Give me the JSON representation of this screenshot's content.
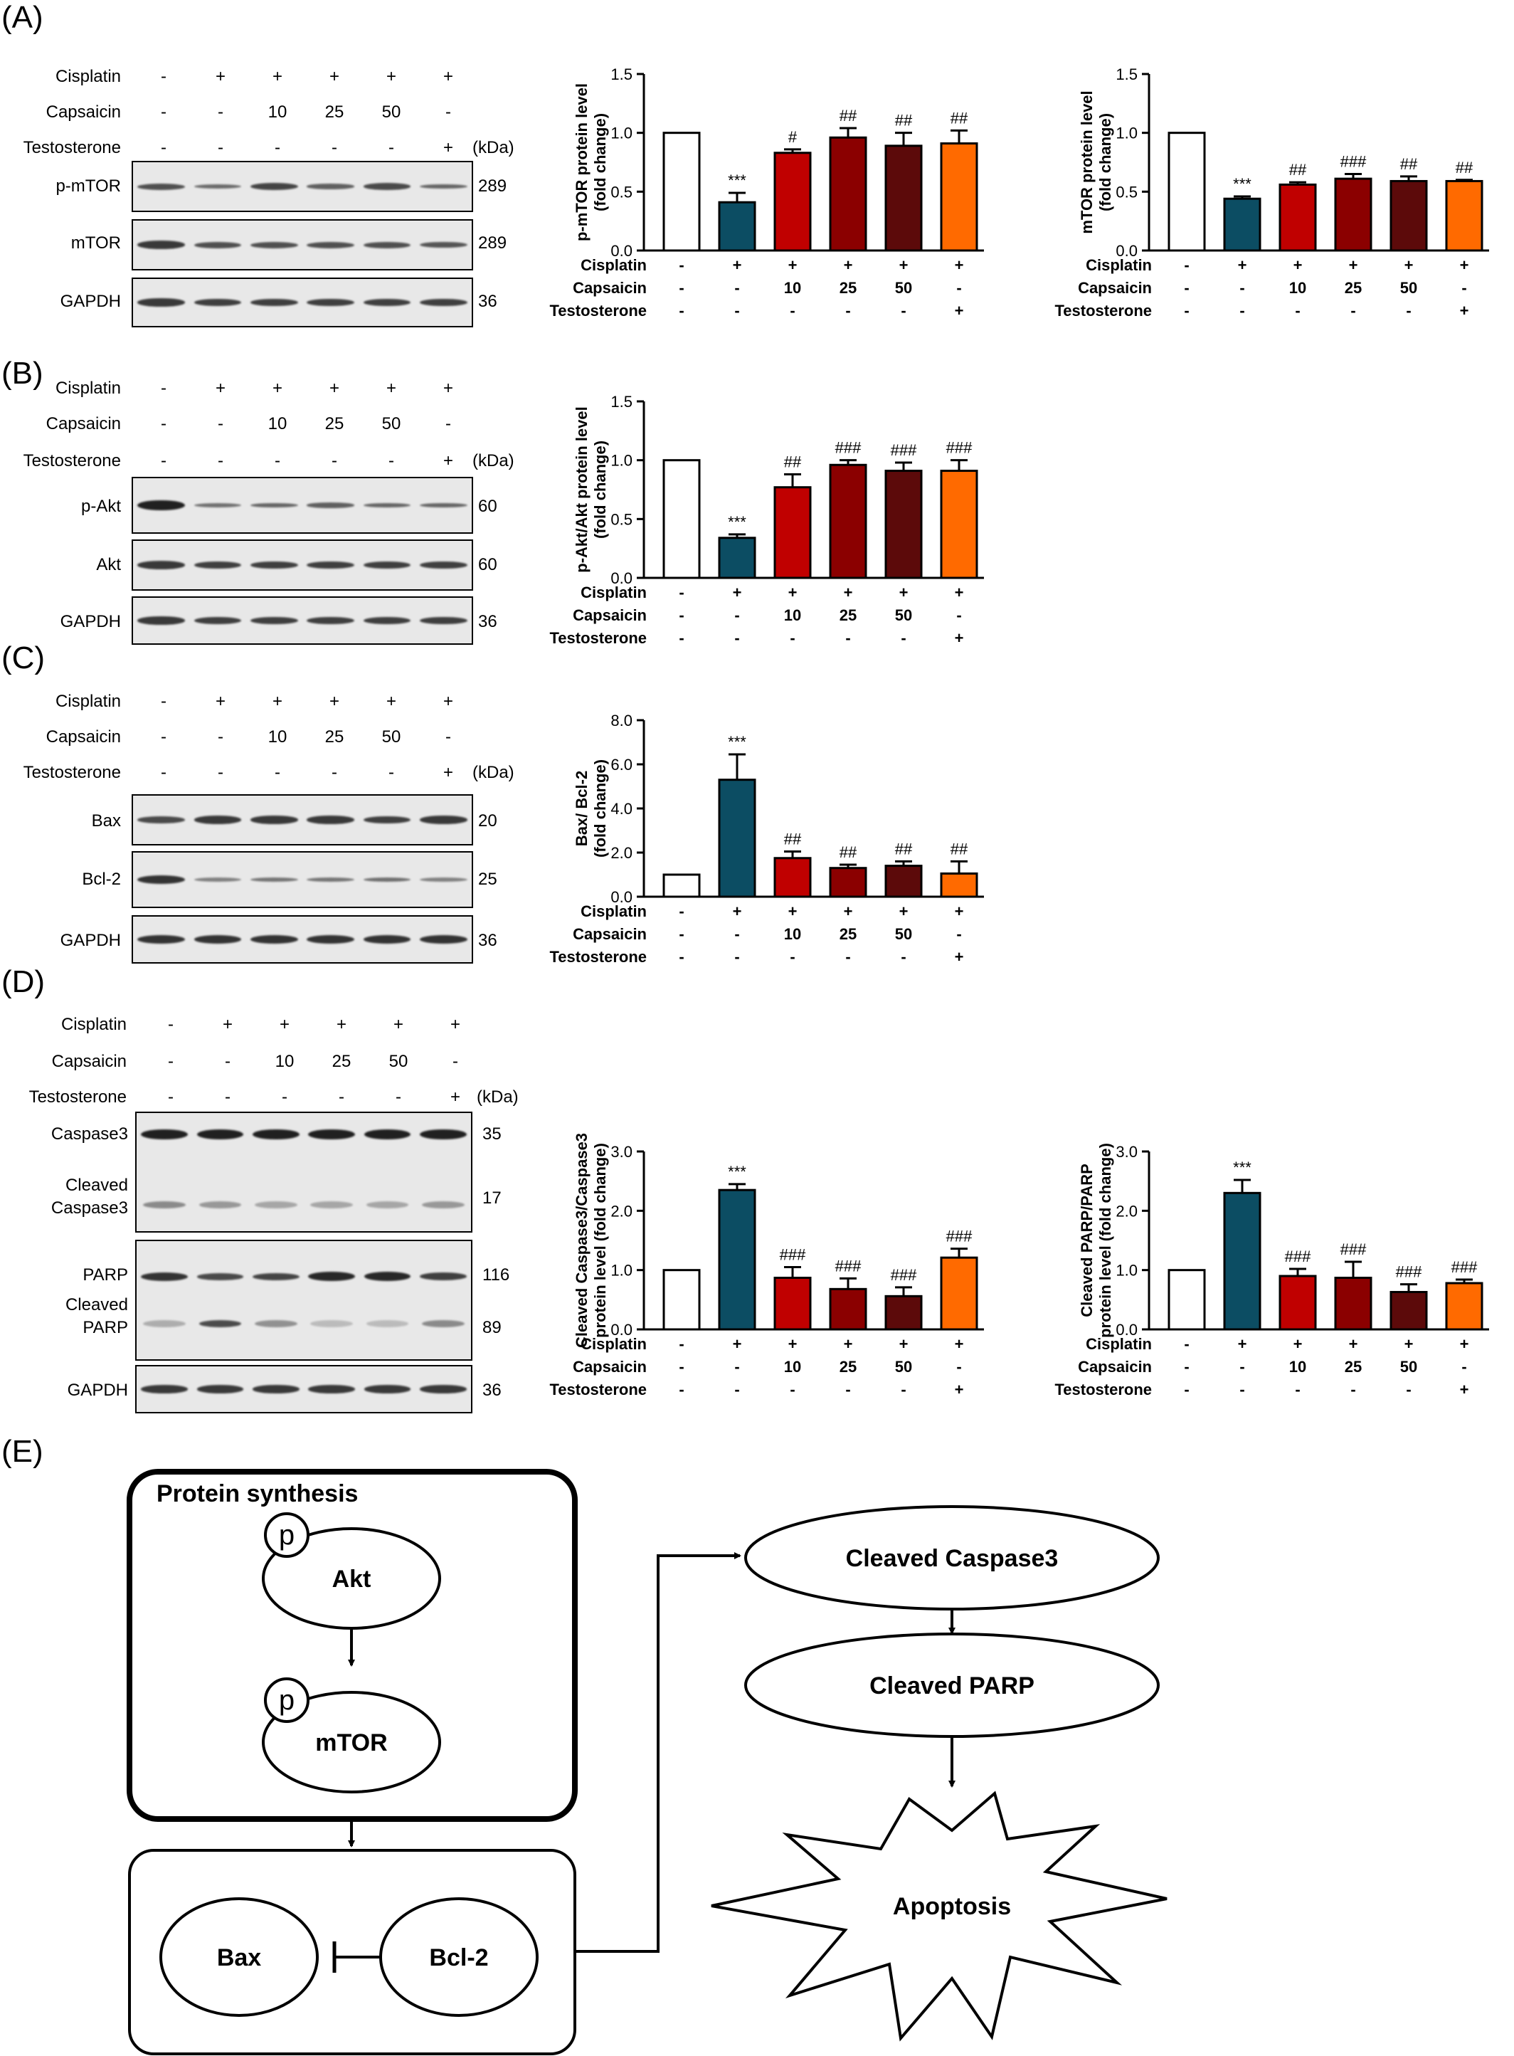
{
  "panels": {
    "A": "(A)",
    "B": "(B)",
    "C": "(C)",
    "D": "(D)",
    "E": "(E)"
  },
  "treatments": {
    "rows": [
      {
        "label": "Cisplatin",
        "values": [
          "-",
          "+",
          "+",
          "+",
          "+",
          "+"
        ]
      },
      {
        "label": "Capsaicin",
        "values": [
          "-",
          "-",
          "10",
          "25",
          "50",
          "-"
        ]
      },
      {
        "label": "Testosterone",
        "values": [
          "-",
          "-",
          "-",
          "-",
          "-",
          "+"
        ]
      }
    ],
    "kda": "(kDa)"
  },
  "blots": {
    "A": [
      {
        "label": "p-mTOR",
        "mw": "289"
      },
      {
        "label": "mTOR",
        "mw": "289"
      },
      {
        "label": "GAPDH",
        "mw": "36"
      }
    ],
    "B": [
      {
        "label": "p-Akt",
        "mw": "60"
      },
      {
        "label": "Akt",
        "mw": "60"
      },
      {
        "label": "GAPDH",
        "mw": "36"
      }
    ],
    "C": [
      {
        "label": "Bax",
        "mw": "20"
      },
      {
        "label": "Bcl-2",
        "mw": "25"
      },
      {
        "label": "GAPDH",
        "mw": "36"
      }
    ],
    "D": {
      "caspase3": "Caspase3",
      "caspase3_mw": "35",
      "cleaved_caspase3_l1": "Cleaved",
      "cleaved_caspase3_l2": "Caspase3",
      "cleaved_caspase3_mw": "17",
      "parp": "PARP",
      "parp_mw": "116",
      "cleaved_parp_l1": "Cleaved",
      "cleaved_parp_l2": "PARP",
      "cleaved_parp_mw": "89",
      "gapdh": "GAPDH",
      "gapdh_mw": "36"
    }
  },
  "colors": [
    "#ffffff",
    "#0c4d63",
    "#c00000",
    "#8b0000",
    "#5c0a0a",
    "#ff6a00"
  ],
  "chart_data": [
    {
      "type": "bar",
      "ylabel_lines": [
        "p-mTOR protein level",
        "(fold change)"
      ],
      "ylim": [
        0,
        1.5
      ],
      "ticks": [
        "0.0",
        "0.5",
        "1.0",
        "1.5"
      ],
      "values": [
        1.0,
        0.41,
        0.83,
        0.96,
        0.89,
        0.91
      ],
      "errors": [
        0,
        0.08,
        0.03,
        0.08,
        0.11,
        0.11
      ],
      "annotations": [
        "",
        "***",
        "#",
        "##",
        "##",
        "##"
      ]
    },
    {
      "type": "bar",
      "ylabel_lines": [
        "mTOR protein level",
        "(fold change)"
      ],
      "ylim": [
        0,
        1.5
      ],
      "ticks": [
        "0.0",
        "0.5",
        "1.0",
        "1.5"
      ],
      "values": [
        1.0,
        0.44,
        0.56,
        0.61,
        0.59,
        0.59
      ],
      "errors": [
        0,
        0.02,
        0.02,
        0.04,
        0.04,
        0.01
      ],
      "annotations": [
        "",
        "***",
        "##",
        "###",
        "##",
        "##"
      ]
    },
    {
      "type": "bar",
      "ylabel_lines": [
        "p-Akt/Akt protein level",
        "(fold change)"
      ],
      "ylim": [
        0,
        1.5
      ],
      "ticks": [
        "0.0",
        "0.5",
        "1.0",
        "1.5"
      ],
      "values": [
        1.0,
        0.34,
        0.77,
        0.96,
        0.91,
        0.91
      ],
      "errors": [
        0,
        0.03,
        0.11,
        0.04,
        0.07,
        0.09
      ],
      "annotations": [
        "",
        "***",
        "##",
        "###",
        "###",
        "###"
      ]
    },
    {
      "type": "bar",
      "ylabel_lines": [
        "Bax/ Bcl-2",
        "(fold change)"
      ],
      "ylim": [
        0,
        8.0
      ],
      "ticks": [
        "0.0",
        "2.0",
        "4.0",
        "6.0",
        "8.0"
      ],
      "values": [
        1.0,
        5.3,
        1.75,
        1.3,
        1.4,
        1.05
      ],
      "errors": [
        0,
        1.15,
        0.3,
        0.15,
        0.2,
        0.55
      ],
      "annotations": [
        "",
        "***",
        "##",
        "##",
        "##",
        "##"
      ]
    },
    {
      "type": "bar",
      "ylabel_lines": [
        "Cleaved Caspase3/Caspase3",
        "protein level (fold change)"
      ],
      "ylim": [
        0,
        3.0
      ],
      "ticks": [
        "0.0",
        "1.0",
        "2.0",
        "3.0"
      ],
      "values": [
        1.0,
        2.35,
        0.87,
        0.68,
        0.56,
        1.21
      ],
      "errors": [
        0,
        0.1,
        0.18,
        0.18,
        0.15,
        0.15
      ],
      "annotations": [
        "",
        "***",
        "###",
        "###",
        "###",
        "###"
      ]
    },
    {
      "type": "bar",
      "ylabel_lines": [
        "Cleaved PARP/PARP",
        "protein level (fold change)"
      ],
      "ylim": [
        0,
        3.0
      ],
      "ticks": [
        "0.0",
        "1.0",
        "2.0",
        "3.0"
      ],
      "values": [
        1.0,
        2.3,
        0.9,
        0.87,
        0.63,
        0.78
      ],
      "errors": [
        0,
        0.22,
        0.12,
        0.27,
        0.13,
        0.06
      ],
      "annotations": [
        "",
        "***",
        "###",
        "###",
        "###",
        "###"
      ]
    }
  ],
  "diagram": {
    "protein_synthesis": "Protein  synthesis",
    "p1": "p",
    "akt": "Akt",
    "p2": "p",
    "mtor": "mTOR",
    "bax": "Bax",
    "bcl2": "Bcl-2",
    "cleaved_caspase3": "Cleaved Caspase3",
    "cleaved_parp": "Cleaved PARP",
    "apoptosis": "Apoptosis"
  }
}
